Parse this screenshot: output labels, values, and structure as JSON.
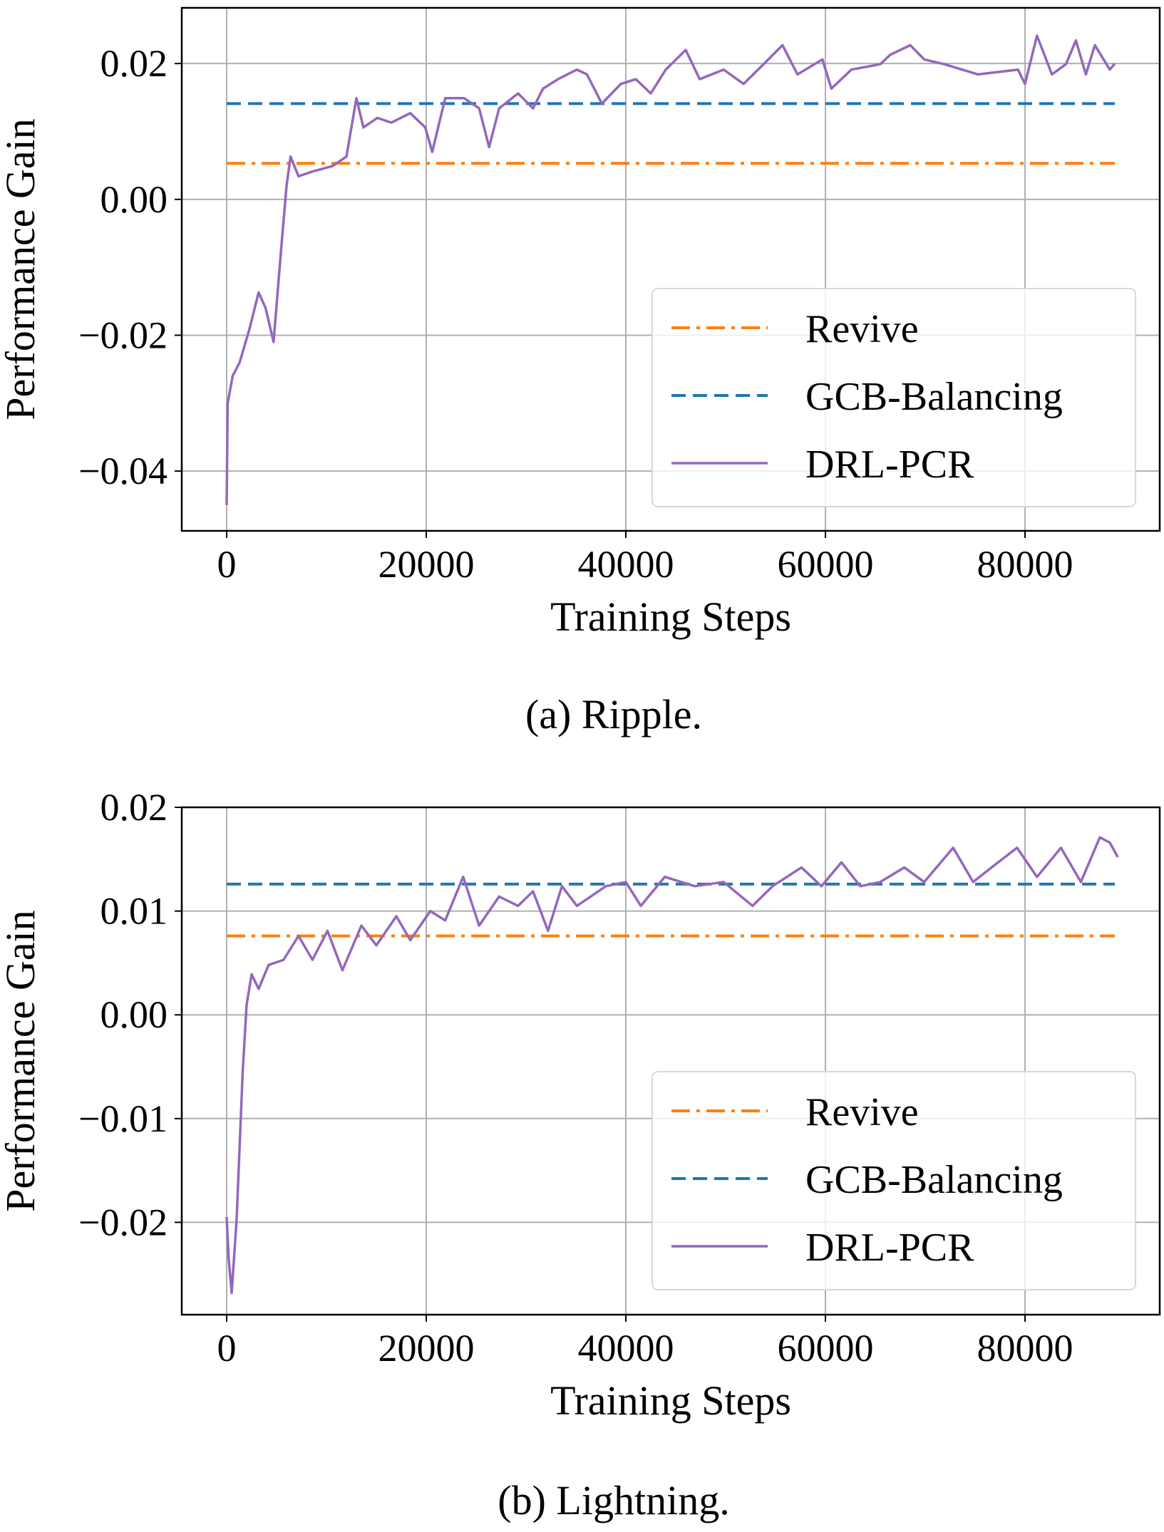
{
  "chart_data": [
    {
      "type": "line",
      "caption": "(a)  Ripple.",
      "xlabel": "Training Steps",
      "ylabel": "Performance Gain",
      "xlim": [
        -4500,
        93500
      ],
      "ylim": [
        -0.0488,
        0.0282
      ],
      "xticks": [
        0,
        20000,
        40000,
        60000,
        80000
      ],
      "xtick_labels": [
        "0",
        "20000",
        "40000",
        "60000",
        "80000"
      ],
      "yticks": [
        0.02,
        0.0,
        -0.02,
        -0.04
      ],
      "ytick_labels": [
        "0.02",
        "0.00",
        "−0.02",
        "−0.04"
      ],
      "grid": true,
      "legend_position": "center-right",
      "series": [
        {
          "name": "Revive",
          "style": "dashdot",
          "color": "#ff7f0e",
          "x": [
            0,
            89000
          ],
          "y": [
            0.0053,
            0.0053
          ]
        },
        {
          "name": "GCB-Balancing",
          "style": "dashed",
          "color": "#1f77b4",
          "x": [
            0,
            89000
          ],
          "y": [
            0.0141,
            0.0141
          ]
        },
        {
          "name": "DRL-PCR",
          "style": "solid",
          "color": "#9467bd",
          "x": [
            0,
            100,
            600,
            1300,
            2300,
            3200,
            3900,
            4700,
            5500,
            6000,
            6400,
            7200,
            8600,
            10600,
            12000,
            13000,
            13700,
            15100,
            16500,
            18400,
            19900,
            20600,
            21900,
            23800,
            25300,
            26300,
            27300,
            29200,
            30700,
            31700,
            33200,
            35100,
            36100,
            37600,
            39500,
            41000,
            42500,
            44000,
            46000,
            47400,
            49800,
            51800,
            53800,
            55700,
            57200,
            59700,
            60600,
            62600,
            65500,
            66500,
            68500,
            69900,
            71900,
            75300,
            79300,
            80000,
            81200,
            82700,
            84100,
            85100,
            86100,
            87000,
            88500,
            89000
          ],
          "y": [
            -0.045,
            -0.03,
            -0.026,
            -0.024,
            -0.019,
            -0.0137,
            -0.016,
            -0.021,
            -0.0066,
            0.002,
            0.0063,
            0.0034,
            0.0041,
            0.0049,
            0.0063,
            0.0149,
            0.0106,
            0.012,
            0.0113,
            0.0127,
            0.0106,
            0.007,
            0.0149,
            0.0149,
            0.0134,
            0.0077,
            0.0134,
            0.0156,
            0.0134,
            0.0163,
            0.0177,
            0.0191,
            0.0184,
            0.0141,
            0.017,
            0.0177,
            0.0156,
            0.0191,
            0.022,
            0.0177,
            0.0191,
            0.017,
            0.0199,
            0.0227,
            0.0184,
            0.0206,
            0.0163,
            0.0191,
            0.0199,
            0.0213,
            0.0227,
            0.0206,
            0.0199,
            0.0184,
            0.0191,
            0.017,
            0.0241,
            0.0184,
            0.0199,
            0.0234,
            0.0184,
            0.0227,
            0.0191,
            0.02
          ]
        }
      ]
    },
    {
      "type": "line",
      "caption": "(b)  Lightning.",
      "xlabel": "Training Steps",
      "ylabel": "Performance Gain",
      "xlim": [
        -4500,
        93500
      ],
      "ylim": [
        -0.0289,
        0.02
      ],
      "xticks": [
        0,
        20000,
        40000,
        60000,
        80000
      ],
      "xtick_labels": [
        "0",
        "20000",
        "40000",
        "60000",
        "80000"
      ],
      "yticks": [
        0.02,
        0.01,
        0.0,
        -0.01,
        -0.02
      ],
      "ytick_labels": [
        "0.02",
        "0.01",
        "0.00",
        "−0.01",
        "−0.02"
      ],
      "grid": true,
      "legend_position": "lower-right",
      "series": [
        {
          "name": "Revive",
          "style": "dashdot",
          "color": "#ff7f0e",
          "x": [
            0,
            89000
          ],
          "y": [
            0.0076,
            0.0076
          ]
        },
        {
          "name": "GCB-Balancing",
          "style": "dashed",
          "color": "#1f77b4",
          "x": [
            0,
            89000
          ],
          "y": [
            0.0126,
            0.0126
          ]
        },
        {
          "name": "DRL-PCR",
          "style": "solid",
          "color": "#9467bd",
          "x": [
            0,
            200,
            500,
            1000,
            1600,
            2000,
            2500,
            3200,
            4200,
            5700,
            7200,
            8600,
            10100,
            11600,
            13500,
            15000,
            17000,
            18400,
            20400,
            21900,
            23700,
            25300,
            27300,
            29200,
            30700,
            32200,
            33600,
            35100,
            38000,
            40000,
            41500,
            43900,
            46900,
            49800,
            52700,
            54700,
            57600,
            59600,
            61600,
            63500,
            65500,
            67900,
            69900,
            72800,
            74800,
            77300,
            79200,
            81200,
            83600,
            85600,
            87500,
            88500,
            89300
          ],
          "y": [
            -0.0195,
            -0.0235,
            -0.0268,
            -0.0197,
            -0.0056,
            0.001,
            0.0039,
            0.0025,
            0.0048,
            0.0053,
            0.0076,
            0.0053,
            0.0081,
            0.0043,
            0.0086,
            0.0067,
            0.0095,
            0.0072,
            0.01,
            0.0091,
            0.0133,
            0.0086,
            0.0114,
            0.0105,
            0.0119,
            0.0081,
            0.0124,
            0.0105,
            0.0124,
            0.0128,
            0.0105,
            0.0133,
            0.0124,
            0.0128,
            0.0105,
            0.0124,
            0.0142,
            0.0124,
            0.0147,
            0.0124,
            0.0128,
            0.0142,
            0.0128,
            0.0161,
            0.0128,
            0.0147,
            0.0161,
            0.0133,
            0.0161,
            0.0128,
            0.0171,
            0.0166,
            0.0152
          ]
        }
      ]
    }
  ]
}
